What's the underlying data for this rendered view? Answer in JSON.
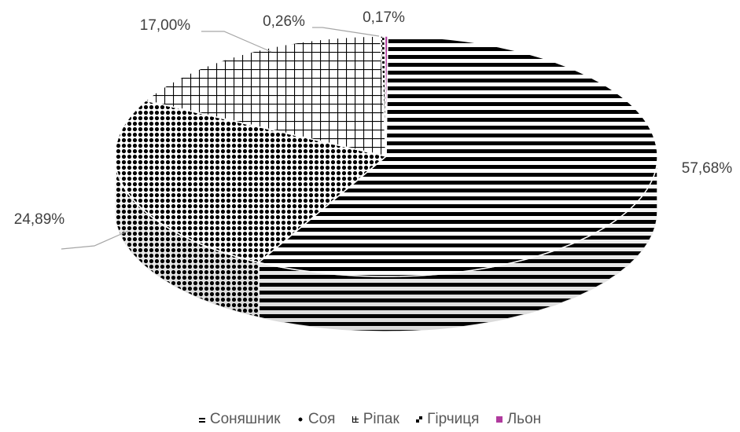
{
  "chart_data": {
    "type": "pie",
    "title": "",
    "style": "3d-exploded-none",
    "slices": [
      {
        "name": "Соняшник",
        "value": 57.68,
        "label": "57,68%",
        "pattern": "horizontal-stripes"
      },
      {
        "name": "Соя",
        "value": 24.89,
        "label": "24,89%",
        "pattern": "dots"
      },
      {
        "name": "Ріпак",
        "value": 17.0,
        "label": "17,00%",
        "pattern": "grid"
      },
      {
        "name": "Гірчиця",
        "value": 0.26,
        "label": "0,26%",
        "pattern": "checker"
      },
      {
        "name": "Льон",
        "value": 0.17,
        "label": "0,17%",
        "pattern": "solid"
      }
    ],
    "colors": {
      "text": "#404040",
      "legend_text": "#595959",
      "leader": "#a6a6a6",
      "flax": "#b03a9e"
    },
    "legend": {
      "position": "bottom",
      "entries": [
        "Соняшник",
        "Соя",
        "Ріпак",
        "Гірчиця",
        "Льон"
      ]
    }
  }
}
